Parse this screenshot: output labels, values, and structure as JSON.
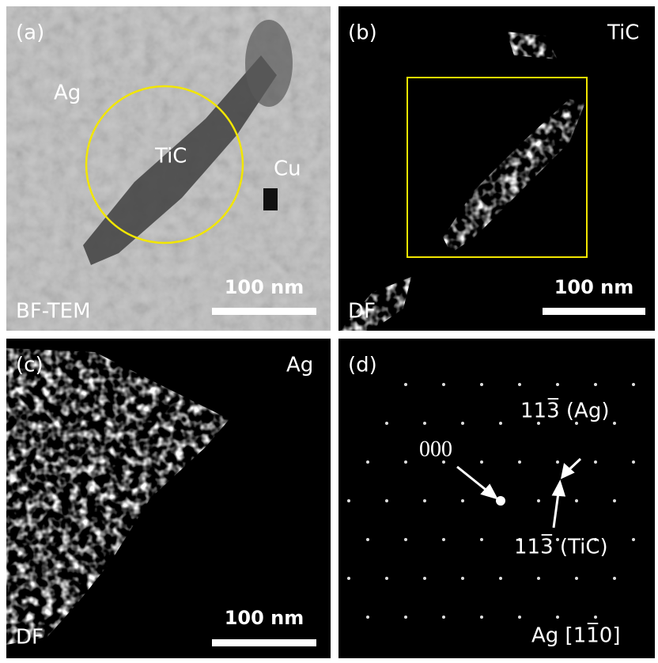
{
  "panels": [
    {
      "label": "(a)",
      "annotations": [
        "Ag",
        "TiC",
        "Cu"
      ],
      "scale_bar": "100 nm",
      "mode": "BF-TEM"
    },
    {
      "label": "(b)",
      "annotations": [
        "TiC"
      ],
      "scale_bar": "100 nm",
      "mode": "DF"
    },
    {
      "label": "(c)",
      "annotations": [
        "Ag"
      ],
      "scale_bar": "100 nm",
      "mode": "DF"
    },
    {
      "label": "(d)",
      "annotations": [
        "000",
        "113̅ (Ag)",
        "113̅ (TiC)",
        "Ag [11̅0]"
      ]
    }
  ]
}
